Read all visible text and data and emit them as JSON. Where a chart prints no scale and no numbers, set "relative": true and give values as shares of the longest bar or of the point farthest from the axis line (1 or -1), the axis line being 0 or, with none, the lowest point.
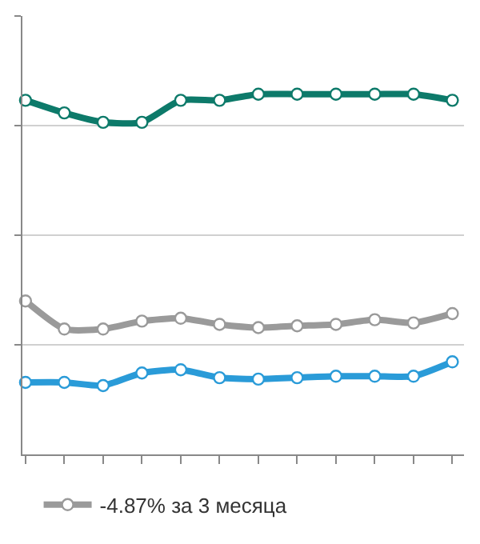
{
  "chart_data": {
    "type": "line",
    "relative": true,
    "categories": [
      null,
      null,
      null,
      null,
      null,
      null,
      null,
      null,
      null,
      null,
      null,
      null
    ],
    "series": [
      {
        "color": "#0d7a6a",
        "values": [
          0.983,
          0.948,
          0.922,
          0.922,
          0.983,
          0.983,
          1,
          1,
          1,
          1,
          1,
          0.983
        ]
      },
      {
        "name": "-4.87% за 3 месяца",
        "color": "#9a9a9a",
        "values": [
          0.426,
          0.348,
          0.348,
          0.37,
          0.378,
          0.361,
          0.352,
          0.357,
          0.361,
          0.374,
          0.365,
          0.391
        ]
      },
      {
        "color": "#2a9bd8",
        "values": [
          0.2,
          0.2,
          0.191,
          0.226,
          0.235,
          0.213,
          0.209,
          0.213,
          0.217,
          0.217,
          0.217,
          0.257
        ]
      }
    ],
    "grid": "y",
    "legend": "bottom",
    "marker": "circle",
    "line_style": "solid"
  }
}
